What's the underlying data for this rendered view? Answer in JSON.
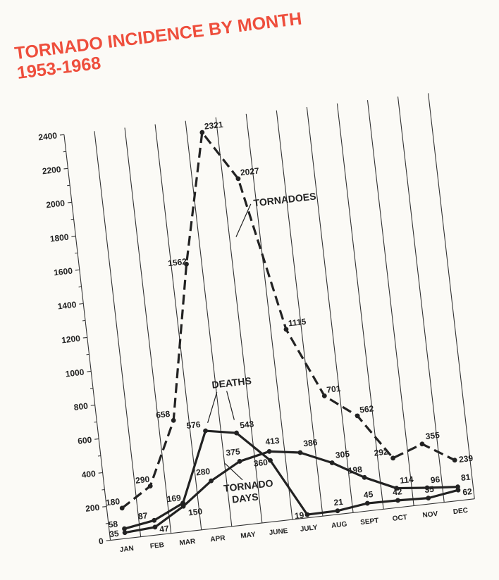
{
  "title_line1": "TORNADO INCIDENCE BY MONTH",
  "title_line2": "1953-1968",
  "chart_data": {
    "type": "line",
    "title": "TORNADO INCIDENCE BY MONTH 1953-1968",
    "categories": [
      "JAN",
      "FEB",
      "MAR",
      "APR",
      "MAY",
      "JUNE",
      "JULY",
      "AUG",
      "SEPT",
      "OCT",
      "NOV",
      "DEC"
    ],
    "y_ticks": [
      0,
      200,
      400,
      600,
      800,
      1000,
      1200,
      1400,
      1600,
      1800,
      2000,
      2200,
      2400
    ],
    "ylim": [
      0,
      2400
    ],
    "grid": "vertical lines at months",
    "series": [
      {
        "name": "TORNADOES",
        "style": "dashed",
        "color": "#222222",
        "values": [
          180,
          290,
          658,
          1562,
          2321,
          2027,
          1115,
          701,
          562,
          292,
          355,
          239
        ],
        "labels": [
          "180",
          "290",
          "658",
          "1562",
          "2321",
          "2027",
          "1115",
          "701",
          "562",
          "292",
          "355",
          "239"
        ]
      },
      {
        "name": "DEATHS",
        "style": "solid",
        "color": "#222222",
        "values": [
          58,
          87,
          169,
          576,
          543,
          360,
          19,
          21,
          45,
          42,
          35,
          62
        ],
        "labels": [
          "58",
          "87",
          "169",
          "576",
          "543",
          "360",
          "19",
          "21",
          "45",
          "42",
          "35",
          "62"
        ]
      },
      {
        "name": "TORNADO DAYS",
        "style": "solid",
        "color": "#222222",
        "values": [
          35,
          47,
          150,
          280,
          375,
          413,
          386,
          305,
          198,
          114,
          96,
          81
        ],
        "labels": [
          "35",
          "47",
          "150",
          "280",
          "375",
          "413",
          "386",
          "305",
          "198",
          "114",
          "96",
          "81"
        ]
      }
    ],
    "annotations": {
      "tornadoes": "TORNADOES",
      "deaths": "DEATHS",
      "tornado_days_1": "TORNADO",
      "tornado_days_2": "DAYS"
    }
  }
}
